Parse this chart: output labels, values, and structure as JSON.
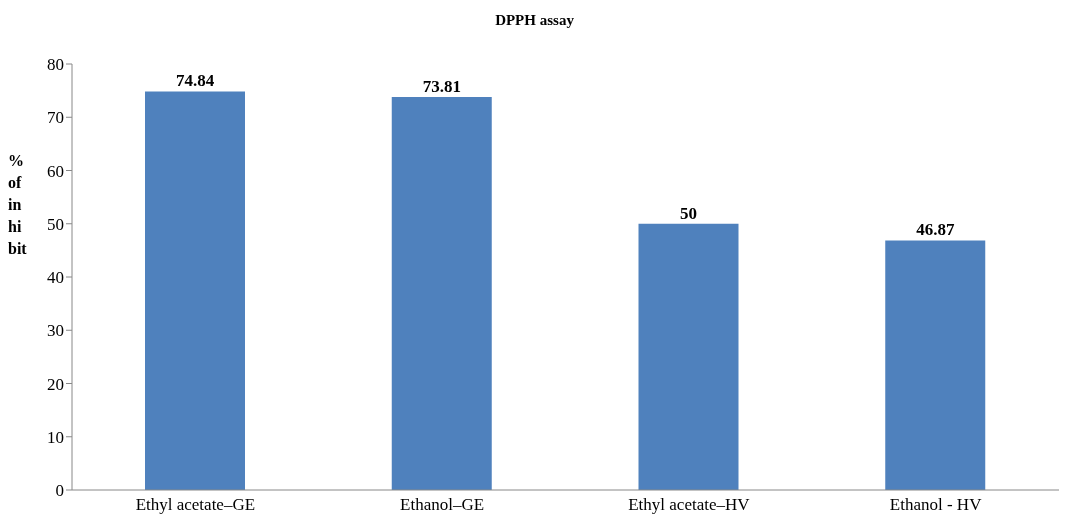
{
  "chart_data": {
    "type": "bar",
    "title": "DPPH assay",
    "ylabel": "% of in hi bit",
    "categories": [
      "Ethyl acetate–GE",
      "Ethanol–GE",
      "Ethyl acetate–HV",
      "Ethanol - HV"
    ],
    "values": [
      74.84,
      73.81,
      50,
      46.87
    ],
    "color": "#4f81bd",
    "ylim": [
      0,
      80
    ],
    "yticks": [
      0,
      10,
      20,
      30,
      40,
      50,
      60,
      70,
      80
    ],
    "grid": false,
    "data_labels": true
  }
}
